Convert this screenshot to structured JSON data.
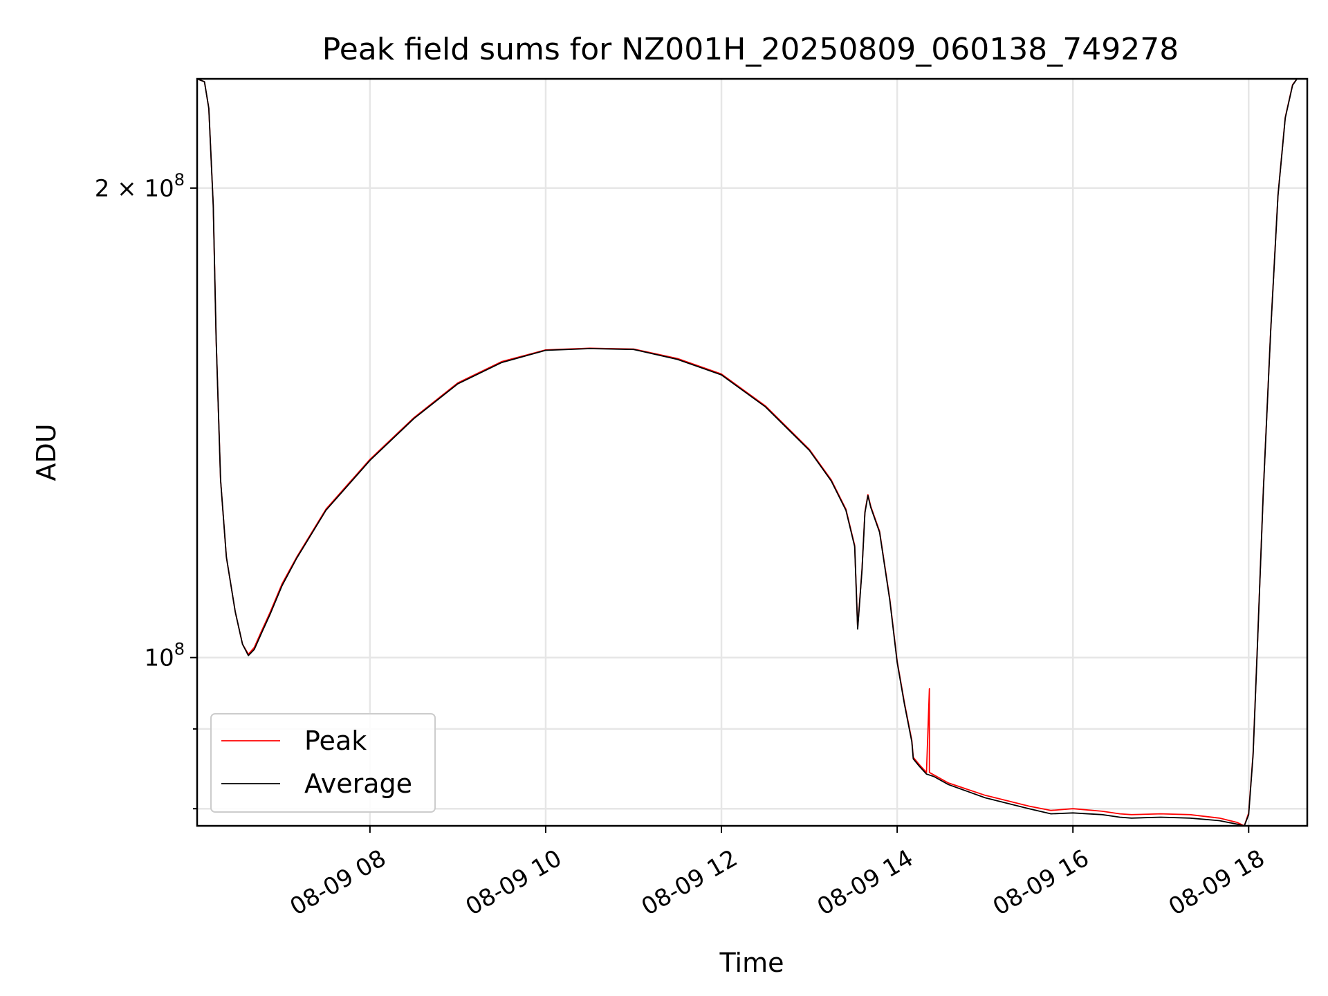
{
  "chart_data": {
    "type": "line",
    "title": "Peak field sums for NZ001H_20250809_060138_749278",
    "xlabel": "Time",
    "ylabel": "ADU",
    "xscale": "time",
    "yscale": "log",
    "xlim": [
      "2025-08-09 06:02",
      "2025-08-09 18:40"
    ],
    "ylim": [
      78000000,
      235000000
    ],
    "xticks": [
      {
        "value": "2025-08-09 08:00",
        "label": "08-09 08"
      },
      {
        "value": "2025-08-09 10:00",
        "label": "08-09 10"
      },
      {
        "value": "2025-08-09 12:00",
        "label": "08-09 12"
      },
      {
        "value": "2025-08-09 14:00",
        "label": "08-09 14"
      },
      {
        "value": "2025-08-09 16:00",
        "label": "08-09 16"
      },
      {
        "value": "2025-08-09 18:00",
        "label": "08-09 18"
      }
    ],
    "yticks": [
      {
        "value": 200000000,
        "base": "2 × 10",
        "exp": "8"
      },
      {
        "value": 100000000,
        "base": "10",
        "exp": "8"
      }
    ],
    "yminor_ticks": [
      90000000,
      80000000
    ],
    "grid": true,
    "legend_position": "lower left",
    "series": [
      {
        "name": "Peak",
        "color": "#ff0000",
        "x": [
          "2025-08-09 06:02",
          "2025-08-09 06:07",
          "2025-08-09 06:10",
          "2025-08-09 06:13",
          "2025-08-09 06:15",
          "2025-08-09 06:18",
          "2025-08-09 06:22",
          "2025-08-09 06:28",
          "2025-08-09 06:33",
          "2025-08-09 06:37",
          "2025-08-09 06:41",
          "2025-08-09 06:46",
          "2025-08-09 06:52",
          "2025-08-09 07:00",
          "2025-08-09 07:10",
          "2025-08-09 07:30",
          "2025-08-09 08:00",
          "2025-08-09 08:30",
          "2025-08-09 09:00",
          "2025-08-09 09:30",
          "2025-08-09 10:00",
          "2025-08-09 10:30",
          "2025-08-09 11:00",
          "2025-08-09 11:30",
          "2025-08-09 12:00",
          "2025-08-09 12:30",
          "2025-08-09 13:00",
          "2025-08-09 13:15",
          "2025-08-09 13:25",
          "2025-08-09 13:31",
          "2025-08-09 13:33",
          "2025-08-09 13:36",
          "2025-08-09 13:38",
          "2025-08-09 13:40",
          "2025-08-09 13:42",
          "2025-08-09 13:48",
          "2025-08-09 13:55",
          "2025-08-09 14:00",
          "2025-08-09 14:05",
          "2025-08-09 14:10",
          "2025-08-09 14:11",
          "2025-08-09 14:15",
          "2025-08-09 14:20",
          "2025-08-09 14:22",
          "2025-08-09 14:22",
          "2025-08-09 14:22",
          "2025-08-09 14:25",
          "2025-08-09 14:35",
          "2025-08-09 15:00",
          "2025-08-09 15:30",
          "2025-08-09 15:45",
          "2025-08-09 16:00",
          "2025-08-09 16:20",
          "2025-08-09 16:32",
          "2025-08-09 16:40",
          "2025-08-09 17:00",
          "2025-08-09 17:20",
          "2025-08-09 17:40",
          "2025-08-09 17:52",
          "2025-08-09 17:57",
          "2025-08-09 18:00",
          "2025-08-09 18:03",
          "2025-08-09 18:06",
          "2025-08-09 18:10",
          "2025-08-09 18:15",
          "2025-08-09 18:20",
          "2025-08-09 18:25",
          "2025-08-09 18:30",
          "2025-08-09 18:33",
          "2025-08-09 18:40"
        ],
        "y": [
          235000000,
          234000000,
          225000000,
          195000000,
          160000000,
          130000000,
          116000000,
          107000000,
          102000000,
          100500000,
          101500000,
          104000000,
          107000000,
          111500000,
          116000000,
          124500000,
          134000000,
          142500000,
          150000000,
          154800000,
          157500000,
          157900000,
          157700000,
          155500000,
          152000000,
          145000000,
          136000000,
          130000000,
          124500000,
          118000000,
          104500000,
          114000000,
          124000000,
          127200000,
          125000000,
          120500000,
          109000000,
          99500000,
          93500000,
          88500000,
          86300000,
          85400000,
          84400000,
          95500000,
          85800000,
          84400000,
          84100000,
          83100000,
          81600000,
          80300000,
          79800000,
          80000000,
          79700000,
          79400000,
          79300000,
          79400000,
          79300000,
          78900000,
          78400000,
          78000000,
          79500000,
          86800000,
          102000000,
          128000000,
          162000000,
          198000000,
          222000000,
          233000000,
          235000000,
          235000000
        ]
      },
      {
        "name": "Average",
        "color": "#000000",
        "x": [
          "2025-08-09 06:02",
          "2025-08-09 06:07",
          "2025-08-09 06:10",
          "2025-08-09 06:13",
          "2025-08-09 06:15",
          "2025-08-09 06:18",
          "2025-08-09 06:22",
          "2025-08-09 06:28",
          "2025-08-09 06:33",
          "2025-08-09 06:37",
          "2025-08-09 06:41",
          "2025-08-09 06:46",
          "2025-08-09 06:52",
          "2025-08-09 07:00",
          "2025-08-09 07:10",
          "2025-08-09 07:30",
          "2025-08-09 08:00",
          "2025-08-09 08:30",
          "2025-08-09 09:00",
          "2025-08-09 09:30",
          "2025-08-09 10:00",
          "2025-08-09 10:30",
          "2025-08-09 11:00",
          "2025-08-09 11:30",
          "2025-08-09 12:00",
          "2025-08-09 12:30",
          "2025-08-09 13:00",
          "2025-08-09 13:15",
          "2025-08-09 13:25",
          "2025-08-09 13:31",
          "2025-08-09 13:33",
          "2025-08-09 13:36",
          "2025-08-09 13:38",
          "2025-08-09 13:40",
          "2025-08-09 13:42",
          "2025-08-09 13:48",
          "2025-08-09 13:55",
          "2025-08-09 14:00",
          "2025-08-09 14:05",
          "2025-08-09 14:10",
          "2025-08-09 14:11",
          "2025-08-09 14:15",
          "2025-08-09 14:20",
          "2025-08-09 14:25",
          "2025-08-09 14:35",
          "2025-08-09 15:00",
          "2025-08-09 15:30",
          "2025-08-09 15:45",
          "2025-08-09 16:00",
          "2025-08-09 16:20",
          "2025-08-09 16:32",
          "2025-08-09 16:40",
          "2025-08-09 17:00",
          "2025-08-09 17:20",
          "2025-08-09 17:40",
          "2025-08-09 17:52",
          "2025-08-09 17:57",
          "2025-08-09 18:00",
          "2025-08-09 18:03",
          "2025-08-09 18:06",
          "2025-08-09 18:10",
          "2025-08-09 18:15",
          "2025-08-09 18:20",
          "2025-08-09 18:25",
          "2025-08-09 18:30",
          "2025-08-09 18:33",
          "2025-08-09 18:40"
        ],
        "y": [
          235000000,
          234000000,
          225000000,
          195000000,
          160000000,
          130000000,
          116000000,
          107000000,
          102000000,
          100300000,
          101200000,
          103700000,
          106700000,
          111200000,
          115800000,
          124300000,
          133800000,
          142300000,
          149800000,
          154600000,
          157400000,
          157800000,
          157600000,
          155300000,
          151800000,
          144800000,
          135800000,
          129800000,
          124300000,
          117800000,
          104300000,
          113800000,
          123800000,
          127000000,
          124800000,
          120300000,
          108800000,
          99300000,
          93300000,
          88300000,
          86100000,
          85200000,
          84200000,
          83900000,
          82900000,
          81300000,
          80000000,
          79400000,
          79500000,
          79300000,
          79000000,
          78900000,
          79000000,
          78900000,
          78600000,
          78200000,
          77900000,
          79300000,
          86600000,
          101800000,
          127800000,
          161800000,
          197800000,
          221800000,
          232800000,
          235000000,
          235000000
        ]
      }
    ]
  }
}
